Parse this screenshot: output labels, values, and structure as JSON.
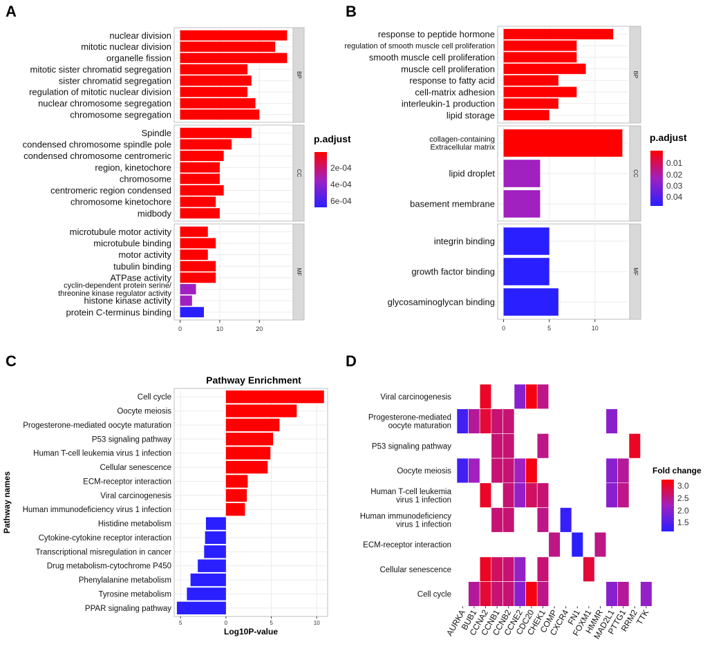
{
  "figure": {
    "panels": [
      {
        "letter": "A",
        "legend_title": "p.adjust",
        "legend_ticks": [
          "2e-04",
          "4e-04",
          "6e-04"
        ]
      },
      {
        "letter": "B",
        "legend_title": "p.adjust",
        "legend_ticks": [
          "0.01",
          "0.02",
          "0.03",
          "0.04"
        ]
      },
      {
        "letter": "C",
        "title": "Pathway Enrichment"
      },
      {
        "letter": "D",
        "legend_title": "Fold change",
        "legend_ticks": [
          "3.0",
          "2.5",
          "2.0",
          "1.5"
        ]
      }
    ]
  },
  "colors": {
    "high": "#ff0000",
    "mid": "#a020c0",
    "low": "#2a1fff",
    "strip": "#d9d9d9",
    "grid": "#ebebeb"
  },
  "chart_data": [
    {
      "type": "bar",
      "orientation": "horizontal",
      "panel": "A",
      "facets": [
        {
          "name": "BP",
          "categories": [
            "nuclear division",
            "mitotic nuclear division",
            "organelle fission",
            "mitotic sister chromatid segregation",
            "sister chromatid segregation",
            "regulation of mitotic nuclear division",
            "nuclear chromosome segregation",
            "chromosome segregation"
          ],
          "values": [
            27,
            24,
            27,
            17,
            18,
            17,
            19,
            20
          ],
          "p_adjust": [
            "low-p",
            "low-p",
            "low-p",
            "low-p",
            "low-p",
            "low-p",
            "low-p",
            "low-p"
          ]
        },
        {
          "name": "CC",
          "categories": [
            "Spindle",
            "condensed chromosome spindle pole",
            "condensed chromosome centromeric",
            "region, kinetochore",
            "chromosome",
            "centromeric region condensed",
            "chromosome kinetochore",
            "midbody"
          ],
          "values": [
            18,
            13,
            11,
            10,
            10,
            11,
            9,
            10
          ],
          "p_adjust": [
            "low-p",
            "low-p",
            "low-p",
            "low-p",
            "low-p",
            "low-p",
            "low-p",
            "low-p"
          ]
        },
        {
          "name": "MF",
          "categories": [
            "microtubule motor activity",
            "microtubule binding",
            "motor activity",
            "tubulin binding",
            "ATPase activity",
            "cyclin-dependent protein serine/\nthreonine kinase regulator activity",
            "histone kinase activity",
            "protein C-terminus binding"
          ],
          "values": [
            7,
            9,
            7,
            9,
            9,
            4,
            3,
            6
          ],
          "p_adjust": [
            "low-p",
            "low-p",
            "low-p",
            "low-p",
            "low-p",
            "mid-p",
            "mid-p",
            "high-p"
          ]
        }
      ],
      "xticks": [
        0,
        10,
        20
      ],
      "xlim": [
        -1.5,
        28.5
      ],
      "legend_title": "p.adjust",
      "legend_ticks": [
        "2e-04",
        "4e-04",
        "6e-04"
      ]
    },
    {
      "type": "bar",
      "orientation": "horizontal",
      "panel": "B",
      "facets": [
        {
          "name": "BP",
          "categories": [
            "response to peptide hormone",
            "regulation of smooth muscle cell proliferation",
            "smooth muscle cell proliferation",
            "muscle cell proliferation",
            "response to fatty acid",
            "cell-matrix adhesion",
            "interleukin-1 production",
            "lipid storage"
          ],
          "values": [
            12,
            8,
            8,
            9,
            6,
            8,
            6,
            5
          ],
          "p_adjust": [
            "low-p",
            "low-p",
            "low-p",
            "low-p",
            "low-p",
            "low-p",
            "low-p",
            "low-p"
          ]
        },
        {
          "name": "CC",
          "categories": [
            "collagen-containing\nExtracellular matrix",
            "lipid droplet",
            "basement membrane"
          ],
          "values": [
            13,
            4,
            4
          ],
          "p_adjust": [
            "low-p",
            "mid-p",
            "mid-p"
          ]
        },
        {
          "name": "MF",
          "categories": [
            "integrin binding",
            "growth factor binding",
            "glycosaminoglycan binding"
          ],
          "values": [
            5,
            5,
            6
          ],
          "p_adjust": [
            "high-p",
            "high-p",
            "high-p"
          ]
        }
      ],
      "xticks": [
        0,
        5,
        10
      ],
      "xlim": [
        -0.65,
        13.8
      ],
      "legend_title": "p.adjust",
      "legend_ticks": [
        "0.01",
        "0.02",
        "0.03",
        "0.04"
      ]
    },
    {
      "type": "bar",
      "orientation": "horizontal",
      "panel": "C",
      "title": "Pathway Enrichment",
      "categories": [
        "Cell cycle",
        "Oocyte meiosis",
        "Progesterone-mediated oocyte maturation",
        "P53 signaling pathway",
        "Human T-cell leukemia virus 1 infection",
        "Cellular senescence",
        "ECM-receptor interaction",
        "Viral carcinogenesis",
        "Human immunodeficiency virus 1 infection",
        "Histidine metabolism",
        "Cytokine-cytokine receptor interaction",
        "Transcriptional misregulation in cancer",
        "Drug metabolism-cytochrome P450",
        "Phenylalanine metabolism",
        "Tyrosine metabolism",
        "PPAR signaling pathway"
      ],
      "values": [
        10.8,
        7.8,
        5.9,
        5.2,
        4.9,
        4.6,
        2.4,
        2.3,
        2.1,
        -2.2,
        -2.3,
        -2.4,
        -3.1,
        -3.9,
        -4.3,
        -5.4
      ],
      "xlabel": "Log10P-value",
      "ylabel": "Pathway names",
      "xticks": [
        -5,
        0,
        5,
        10
      ],
      "xtick_labels": [
        "5",
        "0",
        "5",
        "10"
      ],
      "xlim": [
        -5.7,
        11.2
      ]
    },
    {
      "type": "heatmap",
      "panel": "D",
      "rows": [
        "Viral carcinogenesis",
        "Progesterone-mediated\noocyte maturation",
        "P53 signaling pathway",
        "Oocyte meiosis",
        "Human T-cell leukemia\nvirus 1 infection",
        "Human immunodeficiency\nvirus 1 infection",
        "ECM-receptor interaction",
        "Cellular senescence",
        "Cell cycle"
      ],
      "columns": [
        "AURKA",
        "BUB1",
        "CCNA2",
        "CCNB1",
        "CCNB2",
        "CCNE2",
        "CDC20",
        "CHEK1",
        "COMP",
        "CXCR4",
        "FN1",
        "FOXM1",
        "HMMR",
        "MAD2L1",
        "PTTG1",
        "RRM2",
        "TTK"
      ],
      "values": [
        [
          null,
          null,
          3.0,
          null,
          null,
          2.0,
          3.1,
          2.5,
          null,
          null,
          null,
          null,
          null,
          null,
          null,
          null,
          null
        ],
        [
          1.4,
          2.4,
          2.9,
          2.6,
          2.6,
          null,
          null,
          null,
          null,
          null,
          null,
          null,
          null,
          2.0,
          null,
          null,
          null
        ],
        [
          null,
          null,
          null,
          2.6,
          2.6,
          null,
          null,
          2.5,
          null,
          null,
          null,
          null,
          null,
          null,
          null,
          3.0,
          null
        ],
        [
          1.4,
          2.2,
          null,
          2.6,
          2.6,
          2.2,
          3.1,
          null,
          null,
          null,
          null,
          null,
          null,
          2.0,
          2.4,
          null,
          null
        ],
        [
          null,
          null,
          3.0,
          null,
          2.6,
          2.1,
          2.7,
          2.6,
          null,
          null,
          null,
          null,
          null,
          2.0,
          2.5,
          null,
          null
        ],
        [
          null,
          null,
          null,
          2.6,
          2.6,
          null,
          null,
          2.5,
          null,
          1.3,
          null,
          null,
          null,
          null,
          null,
          null,
          null
        ],
        [
          null,
          null,
          null,
          null,
          null,
          null,
          null,
          null,
          2.5,
          null,
          1.2,
          null,
          2.5,
          null,
          null,
          null,
          null
        ],
        [
          null,
          null,
          3.0,
          2.7,
          2.6,
          2.1,
          null,
          2.6,
          null,
          null,
          null,
          2.9,
          null,
          null,
          null,
          null,
          null
        ],
        [
          null,
          2.4,
          2.9,
          2.6,
          2.6,
          2.0,
          3.1,
          2.5,
          null,
          null,
          null,
          null,
          null,
          2.0,
          2.4,
          null,
          2.1
        ]
      ],
      "legend_title": "Fold change",
      "legend_ticks": [
        "3.0",
        "2.5",
        "2.0",
        "1.5"
      ],
      "range": [
        1.2,
        3.2
      ]
    }
  ]
}
